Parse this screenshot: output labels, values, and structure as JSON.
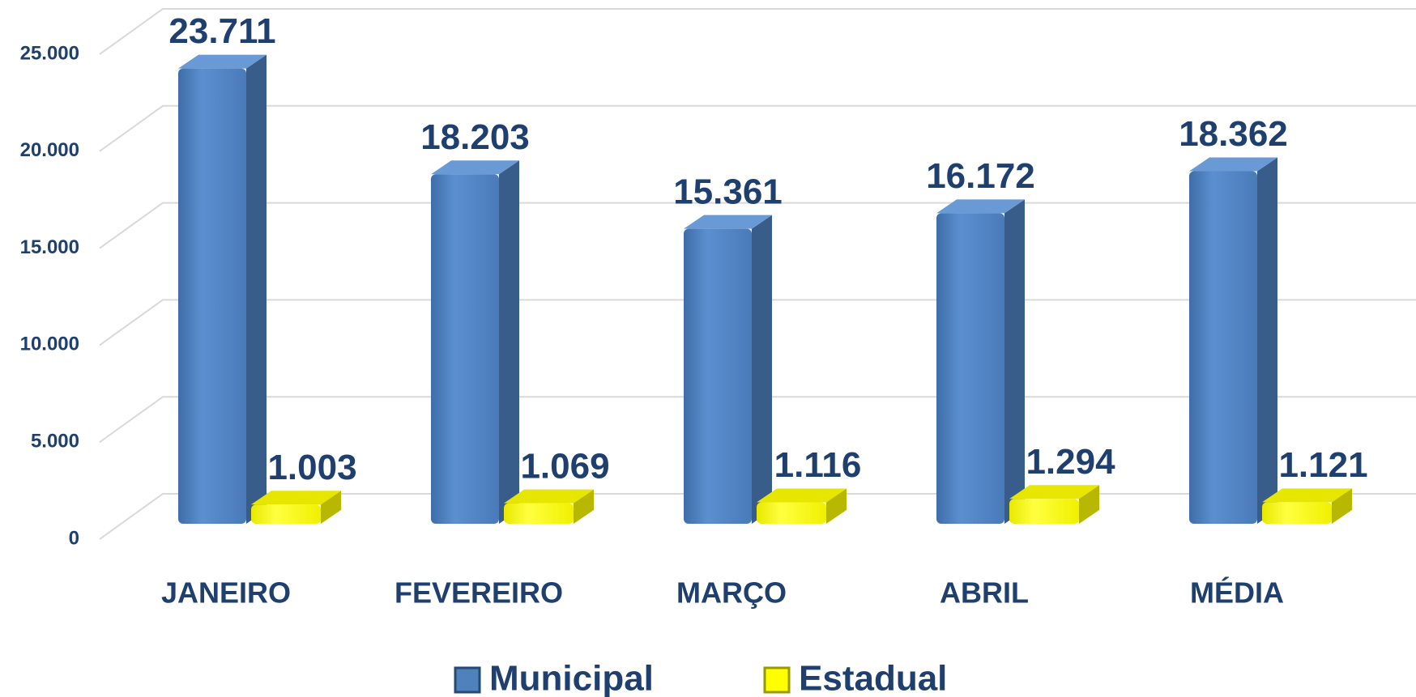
{
  "chart_data": {
    "type": "bar3d",
    "categories": [
      "JANEIRO",
      "FEVEREIRO",
      "MARÇO",
      "ABRIL",
      "MÉDIA"
    ],
    "series": [
      {
        "name": "Municipal",
        "color": "#4f81bd",
        "values": [
          23711,
          18203,
          15361,
          16172,
          18362
        ],
        "value_labels": [
          "23.711",
          "18.203",
          "15.361",
          "16.172",
          "18.362"
        ]
      },
      {
        "name": "Estadual",
        "color": "#ffff00",
        "values": [
          1003,
          1069,
          1116,
          1294,
          1121
        ],
        "value_labels": [
          "1.003",
          "1.069",
          "1.116",
          "1.294",
          "1.121"
        ]
      }
    ],
    "ylim": [
      0,
      25000
    ],
    "yticks": [
      0,
      {
        "value": 5000,
        "label": "5.000"
      },
      {
        "value": 10000,
        "label": "10.000"
      },
      {
        "value": 15000,
        "label": "15.000"
      },
      {
        "value": 20000,
        "label": "20.000"
      },
      {
        "value": 25000,
        "label": "25.000"
      }
    ],
    "grid": true,
    "legend": "bottom"
  }
}
